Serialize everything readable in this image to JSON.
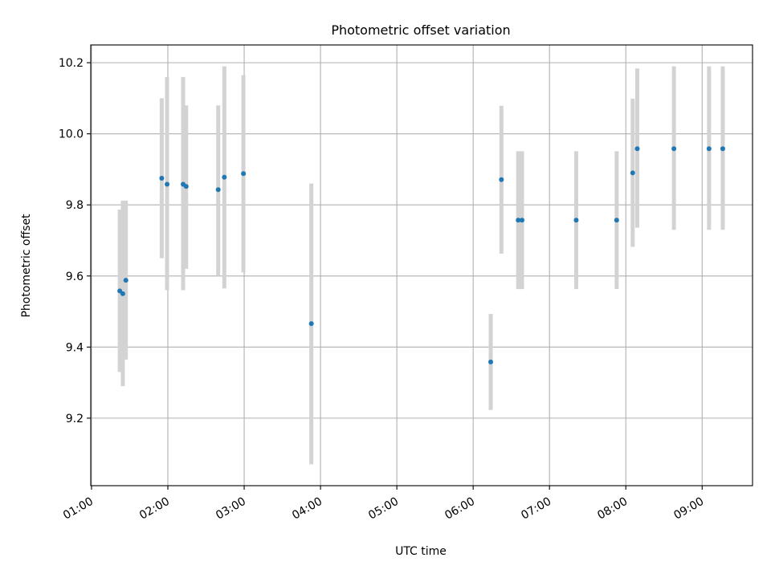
{
  "chart_data": {
    "type": "scatter",
    "title": "Photometric offset variation",
    "xlabel": "UTC time",
    "ylabel": "Photometric offset",
    "x_unit": "hours (UTC)",
    "xlim": [
      0.99,
      9.66
    ],
    "ylim": [
      9.01,
      10.25
    ],
    "x_ticks": [
      {
        "value": 1,
        "label": "01:00"
      },
      {
        "value": 2,
        "label": "02:00"
      },
      {
        "value": 3,
        "label": "03:00"
      },
      {
        "value": 4,
        "label": "04:00"
      },
      {
        "value": 5,
        "label": "05:00"
      },
      {
        "value": 6,
        "label": "06:00"
      },
      {
        "value": 7,
        "label": "07:00"
      },
      {
        "value": 8,
        "label": "08:00"
      },
      {
        "value": 9,
        "label": "09:00"
      }
    ],
    "y_ticks": [
      {
        "value": 9.2,
        "label": "9.2"
      },
      {
        "value": 9.4,
        "label": "9.4"
      },
      {
        "value": 9.6,
        "label": "9.6"
      },
      {
        "value": 9.8,
        "label": "9.8"
      },
      {
        "value": 10.0,
        "label": "10.0"
      },
      {
        "value": 10.2,
        "label": "10.2"
      }
    ],
    "grid": true,
    "x_tick_rotation": 30,
    "colors": {
      "points": "#1f77b4",
      "errorbars": "#d3d3d3",
      "grid": "#b0b0b0"
    },
    "points": [
      {
        "x": 1.37,
        "y": 9.558,
        "ylo": 9.33,
        "yhi": 9.787
      },
      {
        "x": 1.41,
        "y": 9.55,
        "ylo": 9.29,
        "yhi": 9.812
      },
      {
        "x": 1.45,
        "y": 9.588,
        "ylo": 9.365,
        "yhi": 9.812
      },
      {
        "x": 1.92,
        "y": 9.875,
        "ylo": 9.65,
        "yhi": 10.1
      },
      {
        "x": 1.99,
        "y": 9.858,
        "ylo": 9.56,
        "yhi": 10.16
      },
      {
        "x": 2.2,
        "y": 9.858,
        "ylo": 9.56,
        "yhi": 10.16
      },
      {
        "x": 2.24,
        "y": 9.852,
        "ylo": 9.62,
        "yhi": 10.08
      },
      {
        "x": 2.66,
        "y": 9.843,
        "ylo": 9.6,
        "yhi": 10.08
      },
      {
        "x": 2.74,
        "y": 9.878,
        "ylo": 9.565,
        "yhi": 10.19
      },
      {
        "x": 2.99,
        "y": 9.888,
        "ylo": 9.61,
        "yhi": 10.165
      },
      {
        "x": 3.88,
        "y": 9.466,
        "ylo": 9.07,
        "yhi": 9.86
      },
      {
        "x": 6.23,
        "y": 9.358,
        "ylo": 9.223,
        "yhi": 9.493
      },
      {
        "x": 6.37,
        "y": 9.871,
        "ylo": 9.663,
        "yhi": 10.079
      },
      {
        "x": 6.59,
        "y": 9.757,
        "ylo": 9.563,
        "yhi": 9.951
      },
      {
        "x": 6.64,
        "y": 9.757,
        "ylo": 9.563,
        "yhi": 9.951
      },
      {
        "x": 7.35,
        "y": 9.757,
        "ylo": 9.563,
        "yhi": 9.951
      },
      {
        "x": 7.88,
        "y": 9.757,
        "ylo": 9.563,
        "yhi": 9.951
      },
      {
        "x": 8.09,
        "y": 9.89,
        "ylo": 9.682,
        "yhi": 10.099
      },
      {
        "x": 8.15,
        "y": 9.958,
        "ylo": 9.736,
        "yhi": 10.184
      },
      {
        "x": 8.63,
        "y": 9.958,
        "ylo": 9.73,
        "yhi": 10.19
      },
      {
        "x": 9.09,
        "y": 9.958,
        "ylo": 9.73,
        "yhi": 10.19
      },
      {
        "x": 9.27,
        "y": 9.958,
        "ylo": 9.73,
        "yhi": 10.19
      }
    ]
  }
}
